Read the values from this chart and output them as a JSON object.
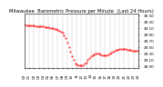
{
  "title": "Milwaukee  Barometric Pressure per Minute  (Last 24 Hours)",
  "line_color": "#ff0000",
  "bg_color": "#ffffff",
  "plot_bg_color": "#ffffff",
  "grid_color": "#888888",
  "ylim": [
    28.85,
    30.55
  ],
  "ytick_values": [
    30.5,
    30.3,
    30.1,
    29.9,
    29.7,
    29.5,
    29.3,
    29.1,
    28.9
  ],
  "ytick_labels": [
    "30.50",
    "30.30",
    "30.10",
    "29.90",
    "29.70",
    "29.50",
    "29.30",
    "29.10",
    "28.90"
  ],
  "x_data": [
    0,
    20,
    40,
    60,
    80,
    100,
    120,
    140,
    160,
    180,
    200,
    220,
    240,
    260,
    280,
    300,
    320,
    340,
    360,
    380,
    400,
    420,
    440,
    460,
    480,
    500,
    520,
    540,
    560,
    580,
    600,
    620,
    640,
    660,
    680,
    700,
    720,
    740,
    760,
    780,
    800,
    820,
    840,
    860,
    880,
    900,
    920,
    940,
    960,
    980,
    1000,
    1020,
    1040,
    1060,
    1080,
    1100,
    1120,
    1140,
    1160,
    1180,
    1200,
    1220,
    1240,
    1260,
    1280,
    1300,
    1320,
    1340,
    1360,
    1380,
    1400,
    1420,
    1439
  ],
  "y_data": [
    30.21,
    30.2,
    30.2,
    30.19,
    30.19,
    30.18,
    30.18,
    30.17,
    30.17,
    30.17,
    30.16,
    30.16,
    30.15,
    30.14,
    30.13,
    30.12,
    30.11,
    30.1,
    30.09,
    30.08,
    30.06,
    30.04,
    30.02,
    29.99,
    29.95,
    29.88,
    29.78,
    29.65,
    29.5,
    29.35,
    29.2,
    29.08,
    28.98,
    28.95,
    28.93,
    28.92,
    28.91,
    28.93,
    28.97,
    29.02,
    29.08,
    29.15,
    29.2,
    29.25,
    29.28,
    29.3,
    29.3,
    29.29,
    29.27,
    29.25,
    29.24,
    29.24,
    29.25,
    29.27,
    29.3,
    29.33,
    29.36,
    29.38,
    29.4,
    29.42,
    29.43,
    29.44,
    29.44,
    29.44,
    29.43,
    29.42,
    29.41,
    29.4,
    29.39,
    29.38,
    29.38,
    29.37,
    29.38
  ],
  "num_xticks": 25,
  "marker_size": 0.9,
  "title_fontsize": 3.8,
  "tick_fontsize": 3.0
}
